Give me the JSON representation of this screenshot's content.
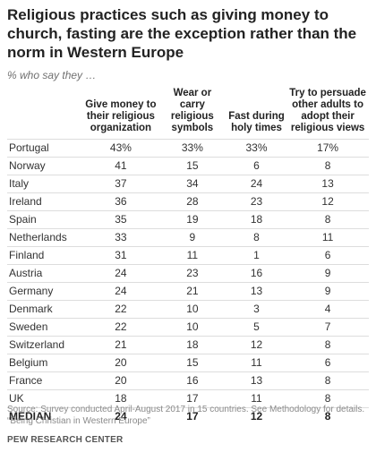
{
  "chart_data": {
    "type": "table",
    "title": "Religious practices such as giving money to church, fasting are the exception rather than the norm in Western Europe",
    "subtitle": "% who say they …",
    "columns": [
      "",
      "Give money to their religious organization",
      "Wear or carry religious symbols",
      "Fast during holy times",
      "Try to persuade other adults to adopt their religious views"
    ],
    "rows": [
      {
        "country": "Portugal",
        "values": [
          "43%",
          "33%",
          "33%",
          "17%"
        ]
      },
      {
        "country": "Norway",
        "values": [
          "41",
          "15",
          "6",
          "8"
        ]
      },
      {
        "country": "Italy",
        "values": [
          "37",
          "34",
          "24",
          "13"
        ]
      },
      {
        "country": "Ireland",
        "values": [
          "36",
          "28",
          "23",
          "12"
        ]
      },
      {
        "country": "Spain",
        "values": [
          "35",
          "19",
          "18",
          "8"
        ]
      },
      {
        "country": "Netherlands",
        "values": [
          "33",
          "9",
          "8",
          "11"
        ]
      },
      {
        "country": "Finland",
        "values": [
          "31",
          "11",
          "1",
          "6"
        ]
      },
      {
        "country": "Austria",
        "values": [
          "24",
          "23",
          "16",
          "9"
        ]
      },
      {
        "country": "Germany",
        "values": [
          "24",
          "21",
          "13",
          "9"
        ]
      },
      {
        "country": "Denmark",
        "values": [
          "22",
          "10",
          "3",
          "4"
        ]
      },
      {
        "country": "Sweden",
        "values": [
          "22",
          "10",
          "5",
          "7"
        ]
      },
      {
        "country": "Switzerland",
        "values": [
          "21",
          "18",
          "12",
          "8"
        ]
      },
      {
        "country": "Belgium",
        "values": [
          "20",
          "15",
          "11",
          "6"
        ]
      },
      {
        "country": "France",
        "values": [
          "20",
          "16",
          "13",
          "8"
        ]
      },
      {
        "country": "UK",
        "values": [
          "18",
          "17",
          "11",
          "8"
        ]
      }
    ],
    "median": {
      "label": "MEDIAN",
      "values": [
        "24",
        "17",
        "12",
        "8"
      ]
    }
  },
  "source": "Source: Survey conducted April-August 2017 in 15 countries. See Methodology for details.\n“Being Christian in Western Europe”",
  "credit": "PEW RESEARCH CENTER"
}
